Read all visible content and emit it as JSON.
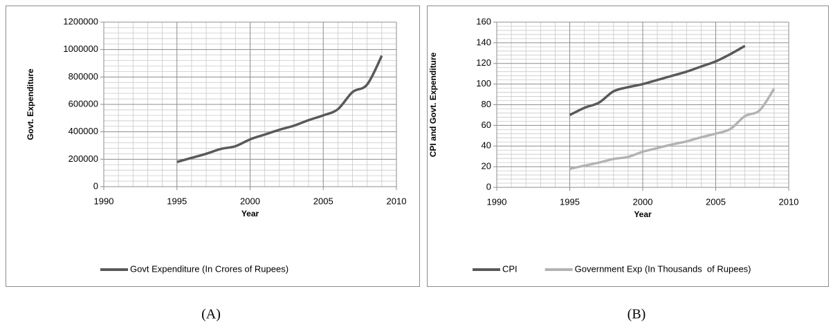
{
  "chart_data": [
    {
      "type": "line",
      "panel_label": "(A)",
      "x_label": "Year",
      "y_label": "Govt. Expenditure",
      "x": [
        1995,
        1996,
        1997,
        1998,
        1999,
        2000,
        2001,
        2002,
        2003,
        2004,
        2005,
        2006,
        2007,
        2008,
        2009
      ],
      "xlim": [
        1990,
        2010
      ],
      "xticks": [
        1990,
        1995,
        2000,
        2005,
        2010
      ],
      "ylim": [
        0,
        1200000
      ],
      "yticks": [
        0,
        200000,
        400000,
        600000,
        800000,
        1000000,
        1200000
      ],
      "grid": true,
      "legend": "bottom",
      "series": [
        {
          "name": "Govt Expenditure (In Crores of Rupees)",
          "color": "#595959",
          "values": [
            180000,
            210000,
            240000,
            275000,
            295000,
            345000,
            380000,
            415000,
            445000,
            485000,
            520000,
            565000,
            690000,
            745000,
            955000
          ]
        }
      ]
    },
    {
      "type": "line",
      "panel_label": "(B)",
      "x_label": "Year",
      "y_label": "CPI and Govt. Expenditure",
      "x": [
        1995,
        1996,
        1997,
        1998,
        1999,
        2000,
        2001,
        2002,
        2003,
        2004,
        2005,
        2006,
        2007,
        2008,
        2009
      ],
      "xlim": [
        1990,
        2010
      ],
      "xticks": [
        1990,
        1995,
        2000,
        2005,
        2010
      ],
      "ylim": [
        0,
        160
      ],
      "yticks": [
        0,
        20,
        40,
        60,
        80,
        100,
        120,
        140,
        160
      ],
      "grid": true,
      "legend": "bottom",
      "series": [
        {
          "name": "CPI",
          "color": "#595959",
          "values": [
            70,
            77,
            82,
            93,
            97,
            100,
            104,
            108,
            112,
            117,
            122,
            129,
            137,
            null,
            null
          ]
        },
        {
          "name": "Government Exp (In Thousands  of Rupees)",
          "color": "#b3b3b3",
          "values": [
            18,
            21,
            24,
            27.5,
            29.5,
            34.5,
            38,
            41.5,
            44.5,
            48.5,
            52,
            56.5,
            69,
            74.5,
            95.5
          ]
        }
      ]
    }
  ]
}
